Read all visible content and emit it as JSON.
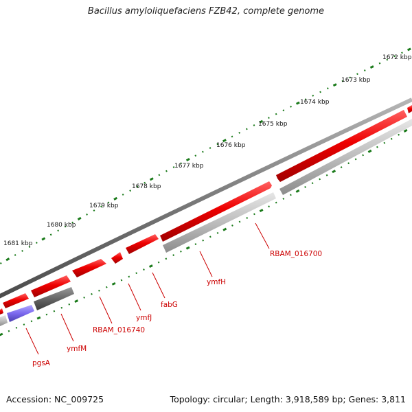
{
  "title": "Bacillus amyloliquefaciens FZB42, complete genome",
  "footer": {
    "accession": "Accession: NC_009725",
    "info": "Topology: circular; Length: 3,918,589 bp; Genes: 3,811"
  },
  "ticks": [
    "1672 kbp",
    "1673 kbp",
    "1674 kbp",
    "1675 kbp",
    "1676 kbp",
    "1677 kbp",
    "1678 kbp",
    "1679 kbp",
    "1680 kbp",
    "1681 kbp"
  ],
  "gene_labels": {
    "rbam016700": "RBAM_016700",
    "ymfH": "ymfH",
    "fabG": "fabG",
    "ymfJ": "ymfJ",
    "rbam016740": "RBAM_016740",
    "ymfM": "ymfM",
    "pgsA": "pgsA"
  },
  "colors": {
    "forward_gene": "#ee0000",
    "reverse_gene": "#b8b8b8",
    "dark_gene": "#6a6a6a",
    "rna_gene": "#7b68ee",
    "backbone": "#808080",
    "tick": "#1a7a1a",
    "label": "#cc0000"
  }
}
